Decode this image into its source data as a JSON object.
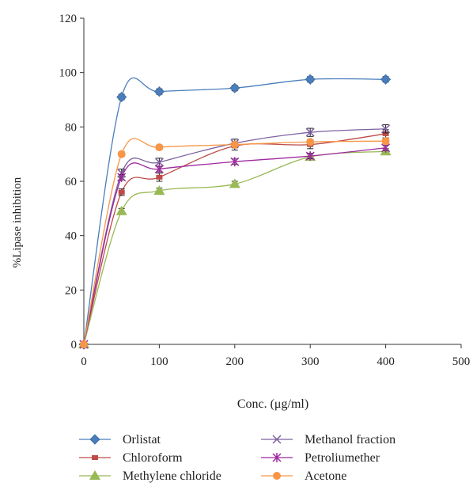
{
  "chart_data": {
    "type": "line",
    "title": "",
    "xlabel": "Conc. (μg/ml)",
    "ylabel": "%Lipase inhibition",
    "xlim": [
      0,
      500
    ],
    "ylim": [
      0,
      120
    ],
    "xticks": [
      0,
      100,
      200,
      300,
      400,
      500
    ],
    "yticks": [
      0,
      20,
      40,
      60,
      80,
      100,
      120
    ],
    "grid": false,
    "legend_position": "bottom",
    "x": [
      0,
      50,
      100,
      200,
      300,
      400
    ],
    "series": [
      {
        "name": "Orlistat",
        "color": "#4a7ebb",
        "marker": "diamond",
        "values": [
          0,
          91,
          93,
          94.3,
          97.5,
          97.5
        ],
        "error": [
          0,
          1,
          1,
          1,
          1,
          1
        ]
      },
      {
        "name": "Chloroform",
        "color": "#be4b48",
        "marker": "dash",
        "values": [
          0,
          56,
          61.5,
          73,
          73.5,
          77.5
        ],
        "error": [
          0,
          1.2,
          1.5,
          1.5,
          1.5,
          1.5
        ]
      },
      {
        "name": "Methylene chloride",
        "color": "#98b954",
        "marker": "triangle",
        "values": [
          0,
          49,
          56.5,
          59,
          69,
          71
        ],
        "error": [
          0,
          1,
          1,
          1,
          1,
          1
        ]
      },
      {
        "name": "Methanol fraction",
        "color": "#7d60a0",
        "marker": "x",
        "values": [
          0,
          63,
          67,
          74,
          78,
          79.3
        ],
        "error": [
          0,
          1.5,
          1.5,
          1.5,
          1.5,
          1.5
        ]
      },
      {
        "name": "Petroliumether",
        "color": "#9e2a9e",
        "marker": "star",
        "values": [
          0,
          61.5,
          64.5,
          67.2,
          69.3,
          72.3
        ],
        "error": [
          0,
          1,
          1,
          1,
          1,
          1
        ]
      },
      {
        "name": "Acetone",
        "color": "#f79646",
        "marker": "circle",
        "values": [
          0,
          70,
          72.5,
          73.5,
          74.5,
          74.8
        ],
        "error": [
          0,
          0.8,
          0.8,
          0.8,
          0.8,
          0.8
        ]
      }
    ]
  }
}
